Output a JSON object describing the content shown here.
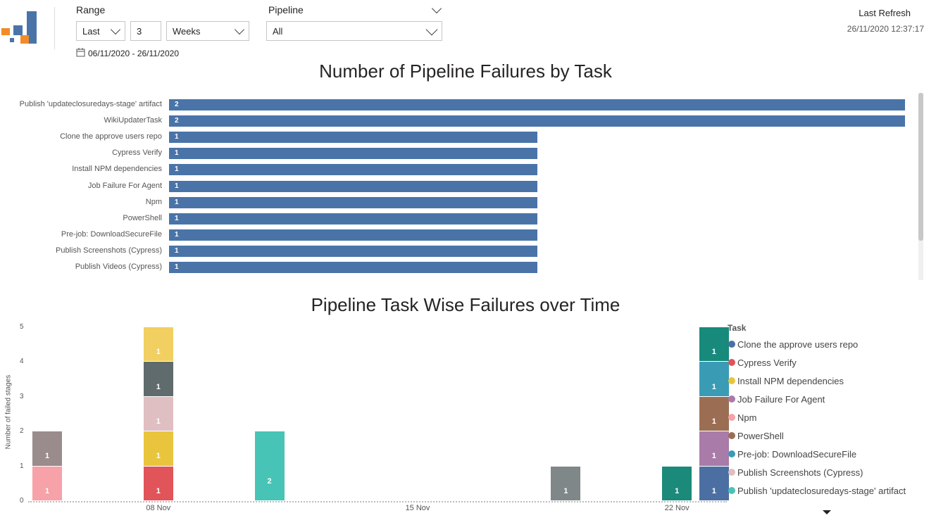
{
  "filters": {
    "range_label": "Range",
    "range_mode": "Last",
    "range_count": "3",
    "range_unit": "Weeks",
    "date_range": "06/11/2020 - 26/11/2020",
    "pipeline_label": "Pipeline",
    "pipeline_value": "All"
  },
  "refresh": {
    "label": "Last Refresh",
    "value": "26/11/2020 12:37:17"
  },
  "colors": {
    "bar": "#4a74a8",
    "clone": "#4c6fa3",
    "cypress": "#e0545a",
    "npm_deps": "#e9c53e",
    "job_failure": "#a97ba8",
    "npm": "#f7a1a8",
    "powershell": "#9b6e54",
    "prejob": "#3a9bb5",
    "screenshots": "#dfbfc1",
    "publish_artifact": "#47c4b5",
    "wiki": "#5f6b6d",
    "videos": "#1b8a7a",
    "grey": "#9a8c8c",
    "slate": "#7f8788"
  },
  "chart_data": [
    {
      "type": "bar",
      "orientation": "horizontal",
      "title": "Number of Pipeline Failures by Task",
      "categories": [
        "Publish 'updateclosuredays-stage' artifact",
        "WikiUpdaterTask",
        "Clone the approve users repo",
        "Cypress Verify",
        "Install NPM dependencies",
        "Job Failure For Agent",
        "Npm",
        "PowerShell",
        "Pre-job: DownloadSecureFile",
        "Publish Screenshots (Cypress)",
        "Publish Videos (Cypress)"
      ],
      "values": [
        2,
        2,
        1,
        1,
        1,
        1,
        1,
        1,
        1,
        1,
        1
      ]
    },
    {
      "type": "bar",
      "stacked": true,
      "title": "Pipeline Task Wise Failures over Time",
      "ylabel": "Number of failed stages",
      "ylim": [
        0,
        5
      ],
      "yticks": [
        "0",
        "1",
        "2",
        "3",
        "4",
        "5"
      ],
      "xticks": [
        "08 Nov",
        "15 Nov",
        "22 Nov"
      ],
      "legend_title": "Task",
      "legend": [
        {
          "name": "Clone the approve users repo",
          "color": "#4c6fa3"
        },
        {
          "name": "Cypress Verify",
          "color": "#e0545a"
        },
        {
          "name": "Install NPM dependencies",
          "color": "#e9c53e"
        },
        {
          "name": "Job Failure For Agent",
          "color": "#a97ba8"
        },
        {
          "name": "Npm",
          "color": "#f7a1a8"
        },
        {
          "name": "PowerShell",
          "color": "#9b6e54"
        },
        {
          "name": "Pre-job: DownloadSecureFile",
          "color": "#3a9bb5"
        },
        {
          "name": "Publish Screenshots (Cypress)",
          "color": "#dfbfc1"
        },
        {
          "name": "Publish 'updateclosuredays-stage' artifact",
          "color": "#47c4b5"
        }
      ],
      "columns": [
        {
          "date": "2020-11-06",
          "segments": [
            {
              "value": 1,
              "color": "#f7a1a8"
            },
            {
              "value": 1,
              "color": "#9a8c8c"
            }
          ]
        },
        {
          "date": "2020-11-09",
          "segments": [
            {
              "value": 1,
              "color": "#e0545a"
            },
            {
              "value": 1,
              "color": "#e9c53e"
            },
            {
              "value": 1,
              "color": "#dfbfc1"
            },
            {
              "value": 1,
              "color": "#5f6b6d"
            },
            {
              "value": 1,
              "color": "#f2cf61"
            }
          ]
        },
        {
          "date": "2020-11-12",
          "segments": [
            {
              "value": 2,
              "color": "#47c4b5"
            }
          ]
        },
        {
          "date": "2020-11-20",
          "segments": [
            {
              "value": 1,
              "color": "#7f8788"
            }
          ]
        },
        {
          "date": "2020-11-23",
          "segments": [
            {
              "value": 1,
              "color": "#1b8a7a"
            }
          ]
        },
        {
          "date": "2020-11-24",
          "segments": [
            {
              "value": 1,
              "color": "#4c6fa3"
            },
            {
              "value": 1,
              "color": "#a97ba8"
            },
            {
              "value": 1,
              "color": "#9b6e54"
            },
            {
              "value": 1,
              "color": "#3a9bb5"
            },
            {
              "value": 1,
              "color": "#178a7c"
            }
          ]
        }
      ]
    }
  ]
}
